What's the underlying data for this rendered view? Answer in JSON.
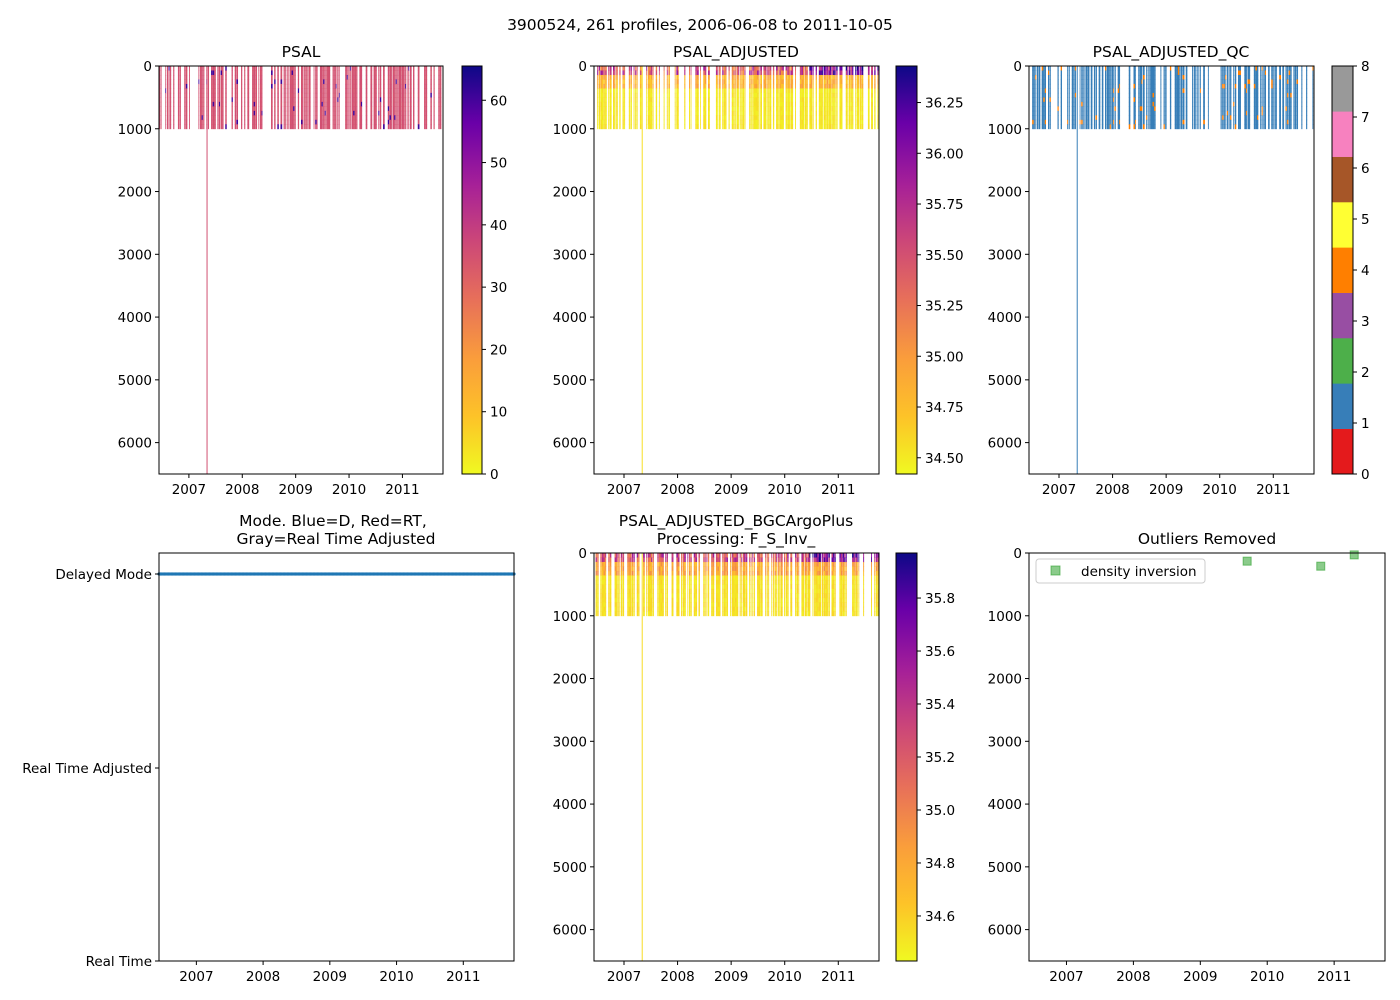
{
  "figure": {
    "suptitle": "3900524, 261 profiles, 2006-06-08 to 2011-10-05"
  },
  "chart_data": [
    {
      "id": "psal",
      "type": "heatmap",
      "title": "PSAL",
      "xticks": [
        "2007",
        "2008",
        "2009",
        "2010",
        "2011"
      ],
      "xlim": [
        2006.44,
        2011.76
      ],
      "ylim": [
        6500,
        0
      ],
      "yticks": [
        "0",
        "1000",
        "2000",
        "3000",
        "4000",
        "5000",
        "6000"
      ],
      "max_depth": 1000,
      "deep_profile": {
        "year": 2007.34,
        "depth": 6500
      },
      "colormap": "plasma_r",
      "colorbar": {
        "ticks": [
          "0",
          "10",
          "20",
          "30",
          "40",
          "50",
          "60"
        ],
        "tick_values": [
          0,
          10,
          20,
          30,
          40,
          50,
          60
        ],
        "range": [
          0,
          65.5
        ]
      },
      "dominant_value": 35.0,
      "notes": "Salinity ~35 at all depths 0-1000; sparse spikes near 60"
    },
    {
      "id": "psal_adjusted",
      "type": "heatmap",
      "title": "PSAL_ADJUSTED",
      "xticks": [
        "2007",
        "2008",
        "2009",
        "2010",
        "2011"
      ],
      "xlim": [
        2006.44,
        2011.76
      ],
      "ylim": [
        6500,
        0
      ],
      "yticks": [
        "0",
        "1000",
        "2000",
        "3000",
        "4000",
        "5000",
        "6000"
      ],
      "max_depth": 1000,
      "deep_profile": {
        "year": 2007.34,
        "depth": 6500
      },
      "colormap": "plasma_r",
      "colorbar": {
        "ticks": [
          "34.50",
          "34.75",
          "35.00",
          "35.25",
          "35.50",
          "35.75",
          "36.00",
          "36.25"
        ],
        "tick_values": [
          34.5,
          34.75,
          35.0,
          35.25,
          35.5,
          35.75,
          36.0,
          36.25
        ],
        "range": [
          34.42,
          36.43
        ]
      },
      "notes": "Surface (0-200) values ~34.8-36.4, deeper values ~34.5"
    },
    {
      "id": "psal_adjusted_qc",
      "type": "heatmap",
      "title": "PSAL_ADJUSTED_QC",
      "xticks": [
        "2007",
        "2008",
        "2009",
        "2010",
        "2011"
      ],
      "xlim": [
        2006.44,
        2011.76
      ],
      "ylim": [
        6500,
        0
      ],
      "yticks": [
        "0",
        "1000",
        "2000",
        "3000",
        "4000",
        "5000",
        "6000"
      ],
      "max_depth": 1000,
      "deep_profile": {
        "year": 2007.34,
        "depth": 6500
      },
      "colormap": "qc_categorical",
      "colorbar": {
        "ticks": [
          "0",
          "1",
          "2",
          "3",
          "4",
          "5",
          "6",
          "7",
          "8"
        ],
        "tick_values": [
          0,
          1,
          2,
          3,
          4,
          5,
          6,
          7,
          8
        ],
        "range": [
          0,
          8
        ]
      },
      "qc_colors": [
        "#e41a1c",
        "#377eb8",
        "#4daf4a",
        "#984ea3",
        "#ff7f00",
        "#ffff33",
        "#a65628",
        "#f781bf",
        "#999999"
      ],
      "dominant_value": 1,
      "notes": "Mostly QC 1 with scattered QC 4 flags"
    },
    {
      "id": "mode",
      "type": "scatter",
      "title_lines": [
        "Mode. Blue=D, Red=RT,",
        "Gray=Real Time Adjusted"
      ],
      "xticks": [
        "2007",
        "2008",
        "2009",
        "2010",
        "2011"
      ],
      "xlim": [
        2006.44,
        2011.76
      ],
      "yticks": [
        "Delayed Mode",
        "Real Time Adjusted",
        "Real Time"
      ],
      "ylim": [
        0,
        2
      ],
      "series": [
        {
          "name": "Delayed Mode",
          "y": 2,
          "x_range": [
            2006.44,
            2011.76
          ],
          "color": "#1f77b4",
          "profile_count": 261
        }
      ]
    },
    {
      "id": "psal_bgc",
      "type": "heatmap",
      "title_lines": [
        "PSAL_ADJUSTED_BGCArgoPlus",
        "Processing: F_S_Inv_"
      ],
      "xticks": [
        "2007",
        "2008",
        "2009",
        "2010",
        "2011"
      ],
      "xlim": [
        2006.44,
        2011.76
      ],
      "ylim": [
        6500,
        0
      ],
      "yticks": [
        "0",
        "1000",
        "2000",
        "3000",
        "4000",
        "5000",
        "6000"
      ],
      "max_depth": 1000,
      "deep_profile": {
        "year": 2007.34,
        "depth": 6500
      },
      "colormap": "plasma_r",
      "colorbar": {
        "ticks": [
          "34.6",
          "34.8",
          "35.0",
          "35.2",
          "35.4",
          "35.6",
          "35.8"
        ],
        "tick_values": [
          34.6,
          34.8,
          35.0,
          35.2,
          35.4,
          35.6,
          35.8
        ],
        "range": [
          34.43,
          35.97
        ]
      },
      "notes": "Surface (0-200) values ~34.8-35.9, deeper values ~34.5"
    },
    {
      "id": "outliers",
      "type": "scatter",
      "title": "Outliers Removed",
      "xticks": [
        "2007",
        "2008",
        "2009",
        "2010",
        "2011"
      ],
      "xlim": [
        2006.44,
        2011.76
      ],
      "ylim": [
        6500,
        0
      ],
      "yticks": [
        "0",
        "1000",
        "2000",
        "3000",
        "4000",
        "5000",
        "6000"
      ],
      "legend": {
        "label": "density inversion",
        "location": "upper-left",
        "color": "#2ca02c"
      },
      "series": [
        {
          "name": "density inversion",
          "points": [
            {
              "year": 2009.7,
              "depth": 130
            },
            {
              "year": 2010.8,
              "depth": 210
            },
            {
              "year": 2011.3,
              "depth": 30
            }
          ]
        }
      ]
    }
  ]
}
